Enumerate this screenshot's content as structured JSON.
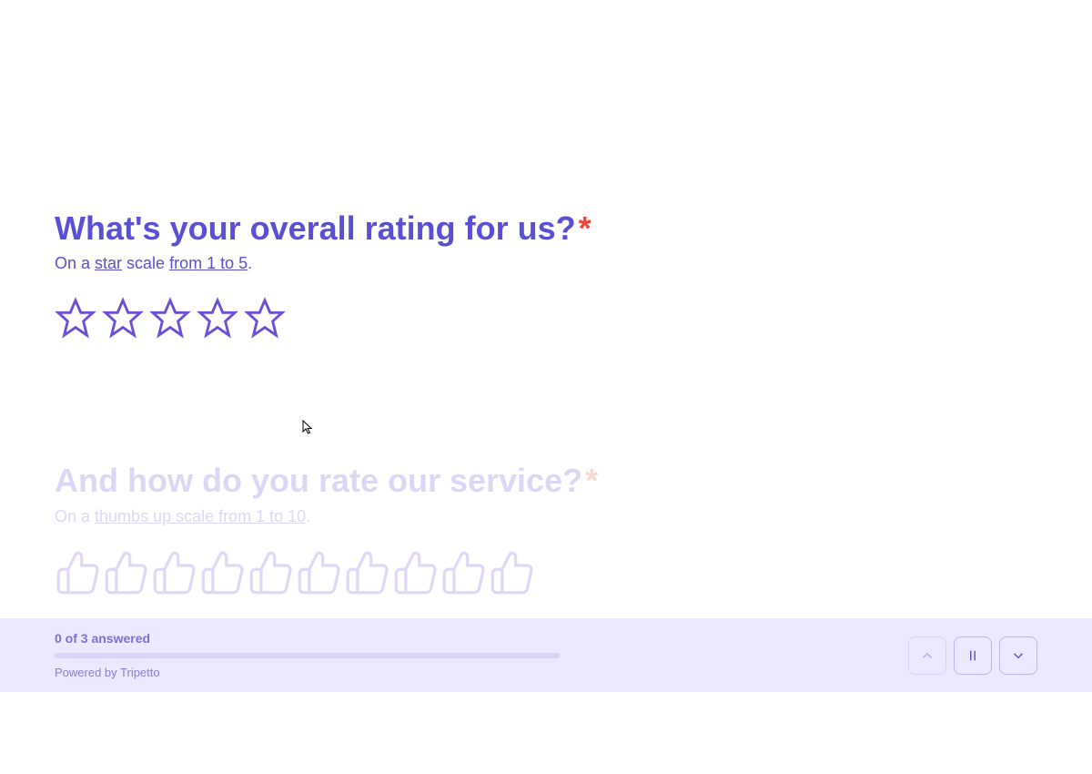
{
  "colors": {
    "primary": "#5b4fd6",
    "icon_stroke": "#6c4fd6",
    "required": "#f44336",
    "footer_bg": "#ebe8ff",
    "footer_text": "#7b6fd6",
    "progress_bg": "#d8d2f5",
    "powered_text": "#8a80d0",
    "btn_border": "#c0b5ed"
  },
  "question1": {
    "title": "What's your overall rating for us?",
    "subtitle_prefix": "On a ",
    "subtitle_underline1": "star",
    "subtitle_middle": " scale ",
    "subtitle_underline2": "from 1 to 5",
    "subtitle_suffix": ".",
    "star_count": 5,
    "required": true
  },
  "question2": {
    "title": "And how do you rate our service?",
    "subtitle_prefix": "On a ",
    "subtitle_underline1": "thumbs up",
    "subtitle_middle": " scale ",
    "subtitle_underline2": "from 1 to 10",
    "subtitle_suffix": ".",
    "thumb_count": 10,
    "required": true
  },
  "footer": {
    "progress_text": "0 of 3 answered",
    "progress_value": 0,
    "progress_max": 3,
    "powered_by": "Powered by Tripetto"
  },
  "nav": {
    "up_enabled": false,
    "pause_enabled": true,
    "down_enabled": true
  }
}
